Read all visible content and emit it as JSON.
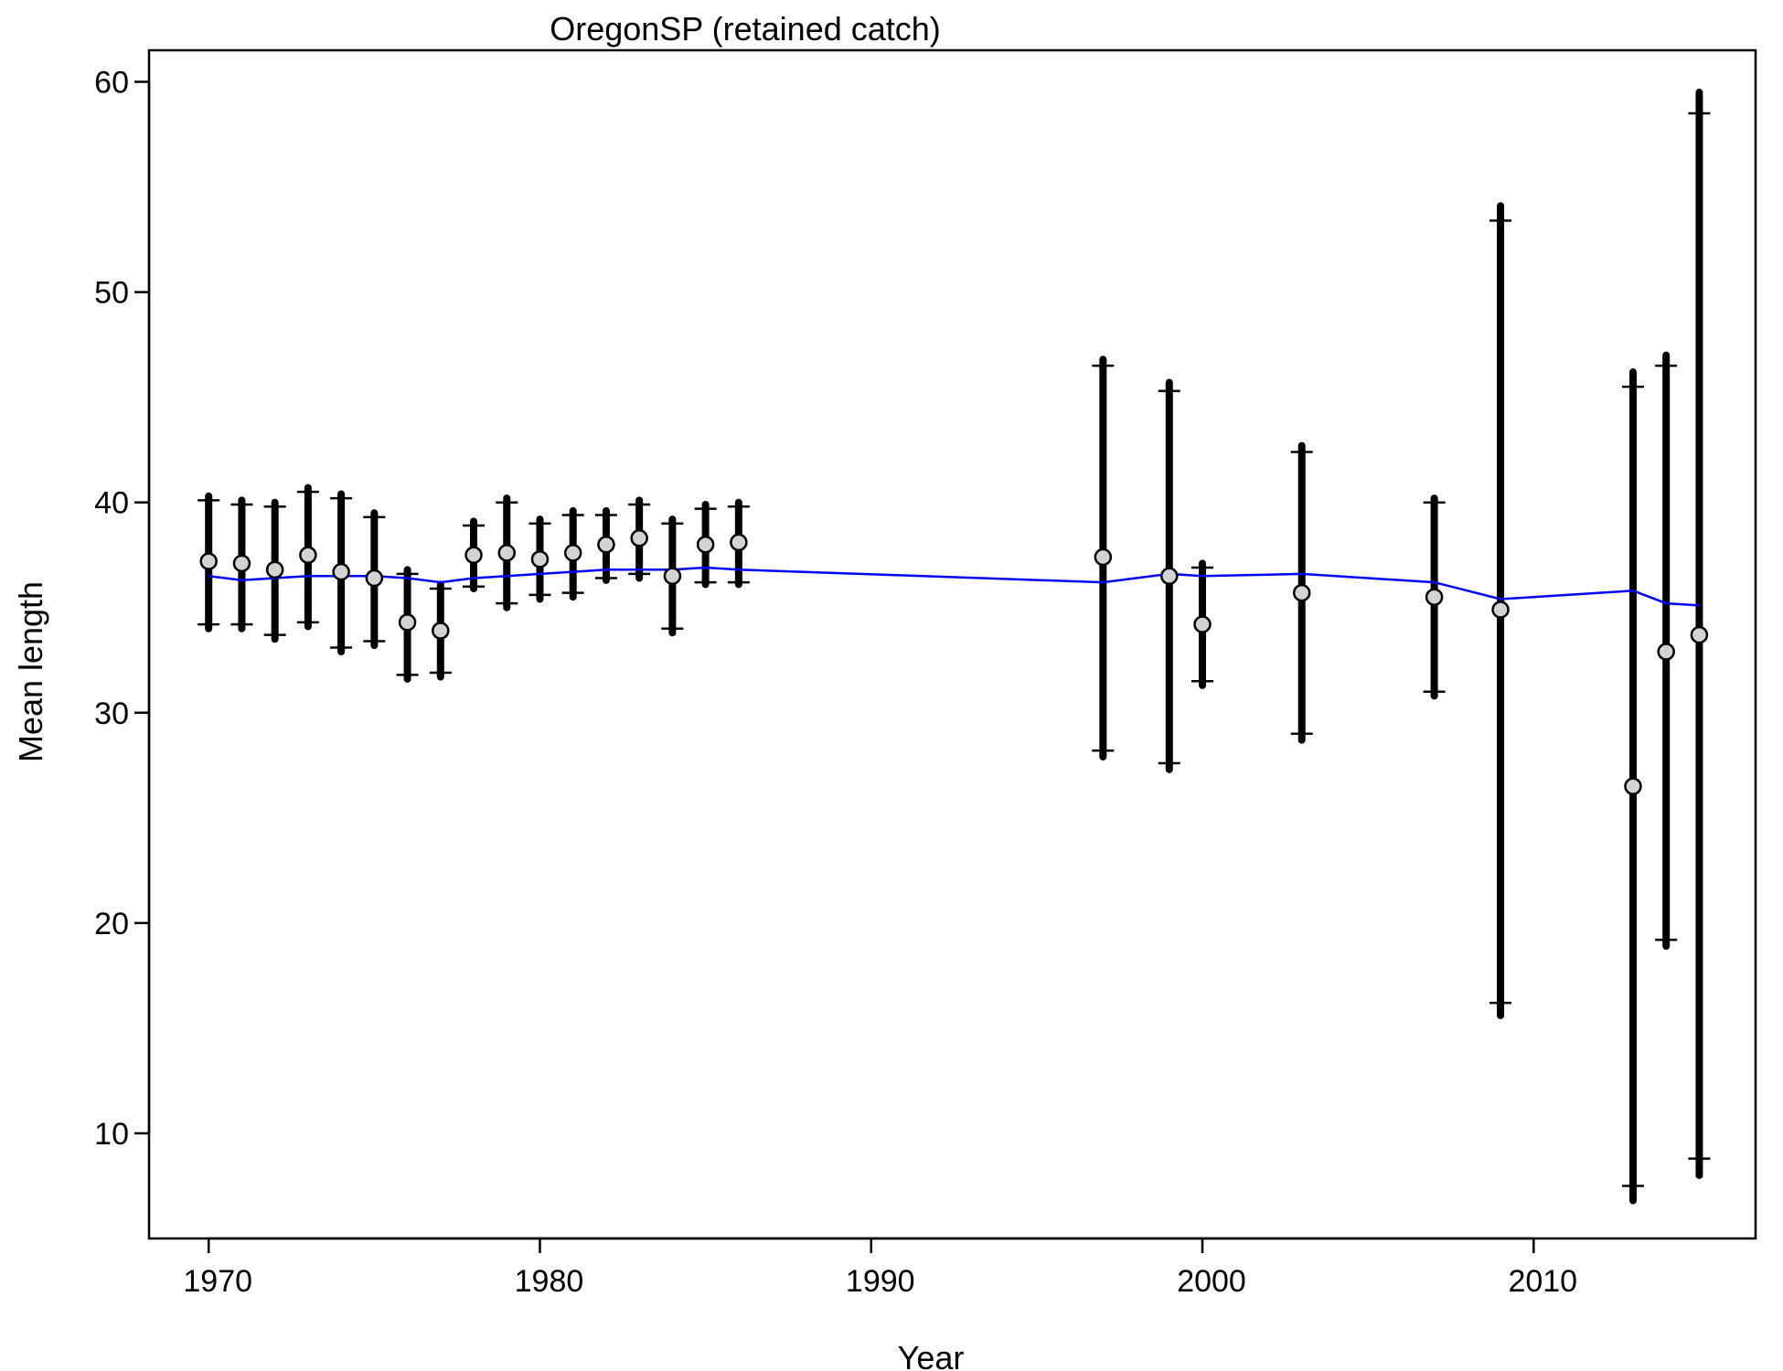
{
  "chart_data": {
    "type": "scatter",
    "title": "OregonSP (retained catch)",
    "xlabel": "Year",
    "ylabel": "Mean length",
    "xlim": [
      1968.2,
      2016.7
    ],
    "ylim": [
      5,
      61.5
    ],
    "xticks": [
      1970,
      1980,
      1990,
      2000,
      2010
    ],
    "yticks": [
      10,
      20,
      30,
      40,
      50,
      60
    ],
    "grid": false,
    "legend": "none",
    "colors": {
      "observed_fill": "#d3d3d3",
      "interval": "#000000",
      "expected_line": "#0000ff"
    },
    "series": [
      {
        "kind": "observed",
        "points": [
          {
            "x": 1970,
            "y": 37.2,
            "lo": 34.0,
            "hi": 40.3,
            "inner_lo": 34.2,
            "inner_hi": 40.1
          },
          {
            "x": 1971,
            "y": 37.1,
            "lo": 34.0,
            "hi": 40.1,
            "inner_lo": 34.2,
            "inner_hi": 39.9
          },
          {
            "x": 1972,
            "y": 36.8,
            "lo": 33.5,
            "hi": 40.0,
            "inner_lo": 33.7,
            "inner_hi": 39.8
          },
          {
            "x": 1973,
            "y": 37.5,
            "lo": 34.1,
            "hi": 40.7,
            "inner_lo": 34.3,
            "inner_hi": 40.5
          },
          {
            "x": 1974,
            "y": 36.7,
            "lo": 32.9,
            "hi": 40.4,
            "inner_lo": 33.1,
            "inner_hi": 40.2
          },
          {
            "x": 1975,
            "y": 36.4,
            "lo": 33.2,
            "hi": 39.5,
            "inner_lo": 33.4,
            "inner_hi": 39.3
          },
          {
            "x": 1976,
            "y": 34.3,
            "lo": 31.6,
            "hi": 36.8,
            "inner_lo": 31.8,
            "inner_hi": 36.6
          },
          {
            "x": 1977,
            "y": 33.9,
            "lo": 31.7,
            "hi": 36.1,
            "inner_lo": 31.9,
            "inner_hi": 35.9
          },
          {
            "x": 1978,
            "y": 37.5,
            "lo": 35.9,
            "hi": 39.1,
            "inner_lo": 36.0,
            "inner_hi": 38.9
          },
          {
            "x": 1979,
            "y": 37.6,
            "lo": 35.0,
            "hi": 40.2,
            "inner_lo": 35.2,
            "inner_hi": 40.0
          },
          {
            "x": 1980,
            "y": 37.3,
            "lo": 35.4,
            "hi": 39.2,
            "inner_lo": 35.6,
            "inner_hi": 39.0
          },
          {
            "x": 1981,
            "y": 37.6,
            "lo": 35.5,
            "hi": 39.6,
            "inner_lo": 35.7,
            "inner_hi": 39.4
          },
          {
            "x": 1982,
            "y": 38.0,
            "lo": 36.3,
            "hi": 39.6,
            "inner_lo": 36.4,
            "inner_hi": 39.4
          },
          {
            "x": 1983,
            "y": 38.3,
            "lo": 36.4,
            "hi": 40.1,
            "inner_lo": 36.6,
            "inner_hi": 39.9
          },
          {
            "x": 1984,
            "y": 36.5,
            "lo": 33.8,
            "hi": 39.2,
            "inner_lo": 34.0,
            "inner_hi": 39.0
          },
          {
            "x": 1985,
            "y": 38.0,
            "lo": 36.1,
            "hi": 39.9,
            "inner_lo": 36.2,
            "inner_hi": 39.7
          },
          {
            "x": 1986,
            "y": 38.1,
            "lo": 36.1,
            "hi": 40.0,
            "inner_lo": 36.2,
            "inner_hi": 39.8
          },
          {
            "x": 1997,
            "y": 37.4,
            "lo": 27.9,
            "hi": 46.8,
            "inner_lo": 28.2,
            "inner_hi": 46.5
          },
          {
            "x": 1999,
            "y": 36.5,
            "lo": 27.3,
            "hi": 45.7,
            "inner_lo": 27.6,
            "inner_hi": 45.3
          },
          {
            "x": 2000,
            "y": 34.2,
            "lo": 31.3,
            "hi": 37.1,
            "inner_lo": 31.5,
            "inner_hi": 36.9
          },
          {
            "x": 2003,
            "y": 35.7,
            "lo": 28.7,
            "hi": 42.7,
            "inner_lo": 29.0,
            "inner_hi": 42.4
          },
          {
            "x": 2007,
            "y": 35.5,
            "lo": 30.8,
            "hi": 40.2,
            "inner_lo": 31.0,
            "inner_hi": 40.0
          },
          {
            "x": 2009,
            "y": 34.9,
            "lo": 15.6,
            "hi": 54.1,
            "inner_lo": 16.2,
            "inner_hi": 53.4
          },
          {
            "x": 2013,
            "y": 26.5,
            "lo": 6.8,
            "hi": 46.2,
            "inner_lo": 7.5,
            "inner_hi": 45.5
          },
          {
            "x": 2014,
            "y": 32.9,
            "lo": 18.9,
            "hi": 47.0,
            "inner_lo": 19.2,
            "inner_hi": 46.5
          },
          {
            "x": 2015,
            "y": 33.7,
            "lo": 8.0,
            "hi": 59.5,
            "inner_lo": 8.8,
            "inner_hi": 58.5
          }
        ]
      },
      {
        "kind": "expected",
        "x": [
          1970,
          1971,
          1972,
          1973,
          1974,
          1975,
          1976,
          1977,
          1978,
          1979,
          1980,
          1981,
          1982,
          1983,
          1984,
          1985,
          1986,
          1997,
          1999,
          2000,
          2003,
          2007,
          2009,
          2013,
          2014,
          2015
        ],
        "y": [
          36.5,
          36.3,
          36.4,
          36.5,
          36.5,
          36.5,
          36.4,
          36.2,
          36.4,
          36.5,
          36.6,
          36.7,
          36.8,
          36.8,
          36.8,
          36.9,
          36.8,
          36.2,
          36.6,
          36.5,
          36.6,
          36.2,
          35.4,
          35.8,
          35.2,
          35.1
        ]
      }
    ]
  }
}
